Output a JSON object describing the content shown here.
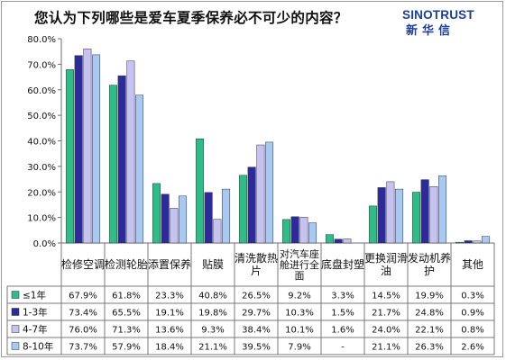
{
  "title": "您认为下列哪些是爱车夏季保养必不可少的内容？",
  "brand": {
    "en": "SINOTRUST",
    "cn": "新华信"
  },
  "colors": {
    "c1": "#2ebd8a",
    "c2": "#2b2b9c",
    "c3": "#c6c2f2",
    "c4": "#a8c9f4"
  },
  "chart_data": {
    "type": "bar",
    "categories": [
      "检修空调",
      "检测轮胎",
      "添置保养",
      "贴膜",
      "清洗散热片",
      "对汽车座舱进行全面",
      "底盘封塑",
      "更换润滑油",
      "发动机养护",
      "其他"
    ],
    "ylim": [
      0,
      80
    ],
    "yticks": [
      "0.0%",
      "10.0%",
      "20.0%",
      "30.0%",
      "40.0%",
      "50.0%",
      "60.0%",
      "70.0%",
      "80.0%"
    ],
    "series": [
      {
        "name": "≤1年",
        "values": [
          67.9,
          61.8,
          23.3,
          40.8,
          26.5,
          9.2,
          3.3,
          14.5,
          19.9,
          0.3
        ],
        "labels": [
          "67.9%",
          "61.8%",
          "23.3%",
          "40.8%",
          "26.5%",
          "9.2%",
          "3.3%",
          "14.5%",
          "19.9%",
          "0.3%"
        ]
      },
      {
        "name": "1-3年",
        "values": [
          73.4,
          65.5,
          19.1,
          19.8,
          29.7,
          10.3,
          1.5,
          21.7,
          24.8,
          0.9
        ],
        "labels": [
          "73.4%",
          "65.5%",
          "19.1%",
          "19.8%",
          "29.7%",
          "10.3%",
          "1.5%",
          "21.7%",
          "24.8%",
          "0.9%"
        ]
      },
      {
        "name": "4-7年",
        "values": [
          76.0,
          71.3,
          13.6,
          9.3,
          38.4,
          10.1,
          1.6,
          24.0,
          22.1,
          0.8
        ],
        "labels": [
          "76.0%",
          "71.3%",
          "13.6%",
          "9.3%",
          "38.4%",
          "10.1%",
          "1.6%",
          "24.0%",
          "22.1%",
          "0.8%"
        ]
      },
      {
        "name": "8-10年",
        "values": [
          73.7,
          57.9,
          18.4,
          21.1,
          39.5,
          7.9,
          null,
          21.1,
          26.3,
          2.6
        ],
        "labels": [
          "73.7%",
          "57.9%",
          "18.4%",
          "21.1%",
          "39.5%",
          "7.9%",
          "-",
          "21.1%",
          "26.3%",
          "2.6%"
        ]
      }
    ],
    "grid": false,
    "legend": "table-left"
  }
}
